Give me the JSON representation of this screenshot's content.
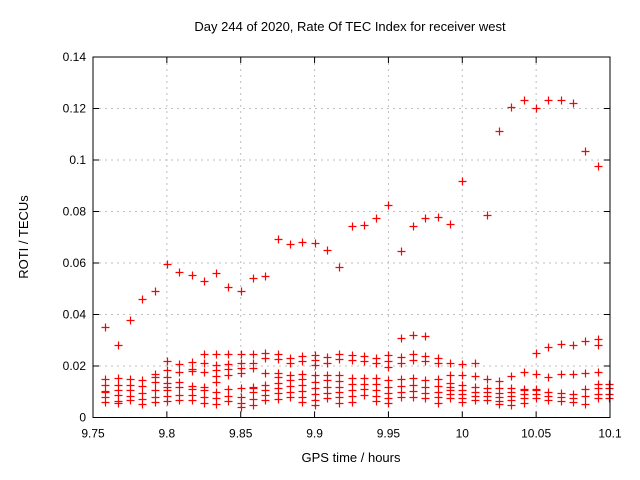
{
  "chart_data": {
    "type": "scatter",
    "title": "Day 244 of 2020, Rate Of TEC Index for receiver west",
    "xlabel": "GPS time / hours",
    "ylabel": "ROTI / TECUs",
    "xlim": [
      9.75,
      10.1
    ],
    "ylim": [
      0,
      0.14
    ],
    "xticks": [
      9.75,
      9.8,
      9.85,
      9.9,
      9.95,
      10,
      10.05,
      10.1
    ],
    "xtick_labels": [
      "9.75",
      "9.8",
      "9.85",
      "9.9",
      "9.95",
      "10",
      "10.05",
      "10.1"
    ],
    "yticks": [
      0,
      0.02,
      0.04,
      0.06,
      0.08,
      0.1,
      0.12,
      0.14
    ],
    "ytick_labels": [
      "0",
      "0.02",
      "0.04",
      "0.06",
      "0.08",
      "0.1",
      "0.12",
      "0.14"
    ],
    "grid": true,
    "legend_position": "none",
    "marker": "plus",
    "marker_color": "#ff0000",
    "grid_color": "#bfbfbf",
    "frame_color": "#000000",
    "background_color": "#ffffff",
    "series": [
      {
        "name": "ROTI",
        "epochs": [
          {
            "x": 9.7583,
            "ys": [
              0.035,
              0.015,
              0.0125,
              0.0103,
              0.0098,
              0.0078,
              0.006
            ]
          },
          {
            "x": 9.7667,
            "ys": [
              0.028,
              0.0153,
              0.0127,
              0.0108,
              0.0089,
              0.0065,
              0.0055
            ]
          },
          {
            "x": 9.775,
            "ys": [
              0.038,
              0.015,
              0.0125,
              0.0105,
              0.0085,
              0.0067
            ]
          },
          {
            "x": 9.7833,
            "ys": [
              0.046,
              0.0147,
              0.0121,
              0.0095,
              0.0073,
              0.0052
            ]
          },
          {
            "x": 9.7917,
            "ys": [
              0.049,
              0.017,
              0.0157,
              0.0139,
              0.0105,
              0.0079,
              0.006
            ]
          },
          {
            "x": 9.8,
            "ys": [
              0.0595,
              0.0218,
              0.0183,
              0.0158,
              0.0133,
              0.0118,
              0.0107,
              0.0083,
              0.0065
            ]
          },
          {
            "x": 9.8083,
            "ys": [
              0.0565,
              0.0209,
              0.0177,
              0.0139,
              0.0118,
              0.0087,
              0.0068
            ]
          },
          {
            "x": 9.8167,
            "ys": [
              0.0555,
              0.0216,
              0.0187,
              0.0179,
              0.0122,
              0.011,
              0.0087,
              0.0068
            ]
          },
          {
            "x": 9.825,
            "ys": [
              0.053,
              0.0248,
              0.0213,
              0.0177,
              0.0118,
              0.0107,
              0.0081,
              0.0057
            ]
          },
          {
            "x": 9.8333,
            "ys": [
              0.056,
              0.0245,
              0.0204,
              0.0184,
              0.016,
              0.0139,
              0.01,
              0.0074,
              0.0054
            ]
          },
          {
            "x": 9.8417,
            "ys": [
              0.0505,
              0.0245,
              0.0208,
              0.0187,
              0.0165,
              0.0111,
              0.0085,
              0.0063
            ]
          },
          {
            "x": 9.85,
            "ys": [
              0.049,
              0.0245,
              0.021,
              0.0191,
              0.0172,
              0.0115,
              0.0113,
              0.0081,
              0.0057,
              0.0042
            ]
          },
          {
            "x": 9.8583,
            "ys": [
              0.054,
              0.0245,
              0.0213,
              0.0191,
              0.0118,
              0.0116,
              0.01,
              0.0072,
              0.005
            ]
          },
          {
            "x": 9.8667,
            "ys": [
              0.0551,
              0.0249,
              0.023,
              0.0172,
              0.0126,
              0.0107,
              0.0087,
              0.0068
            ]
          },
          {
            "x": 9.875,
            "ys": [
              0.0692,
              0.0246,
              0.0226,
              0.0174,
              0.0156,
              0.0135,
              0.0113,
              0.0094,
              0.007
            ]
          },
          {
            "x": 9.8833,
            "ys": [
              0.0674,
              0.023,
              0.0211,
              0.0166,
              0.0146,
              0.0123,
              0.01,
              0.0078
            ]
          },
          {
            "x": 9.8917,
            "ys": [
              0.068,
              0.024,
              0.022,
              0.017,
              0.0148,
              0.0126,
              0.0104,
              0.008,
              0.006
            ]
          },
          {
            "x": 9.9,
            "ys": [
              0.0679,
              0.0243,
              0.0223,
              0.0204,
              0.0165,
              0.0139,
              0.0113,
              0.0091,
              0.0068,
              0.0049
            ]
          },
          {
            "x": 9.9083,
            "ys": [
              0.0649,
              0.0236,
              0.0213,
              0.0165,
              0.0146,
              0.012,
              0.0097,
              0.0075
            ]
          },
          {
            "x": 9.9167,
            "ys": [
              0.0583,
              0.0246,
              0.0226,
              0.0165,
              0.0142,
              0.012,
              0.01,
              0.0078,
              0.0058
            ]
          },
          {
            "x": 9.925,
            "ys": [
              0.0745,
              0.0243,
              0.0223,
              0.0152,
              0.013,
              0.0107,
              0.0084,
              0.0062
            ]
          },
          {
            "x": 9.9333,
            "ys": [
              0.0746,
              0.024,
              0.022,
              0.0155,
              0.0132,
              0.011,
              0.0088
            ]
          },
          {
            "x": 9.9417,
            "ys": [
              0.0773,
              0.023,
              0.021,
              0.0152,
              0.013,
              0.0107,
              0.0084,
              0.0066
            ]
          },
          {
            "x": 9.95,
            "ys": [
              0.0824,
              0.0243,
              0.0221,
              0.0198,
              0.0146,
              0.012,
              0.0097,
              0.0075,
              0.0055
            ]
          },
          {
            "x": 9.9583,
            "ys": [
              0.0647,
              0.031,
              0.0236,
              0.0213,
              0.0148,
              0.0123,
              0.01,
              0.0078
            ]
          },
          {
            "x": 9.9667,
            "ys": [
              0.0744,
              0.032,
              0.0246,
              0.0223,
              0.0152,
              0.0126,
              0.0104,
              0.0081
            ]
          },
          {
            "x": 9.975,
            "ys": [
              0.0776,
              0.0315,
              0.024,
              0.022,
              0.0146,
              0.012,
              0.0097,
              0.0075
            ]
          },
          {
            "x": 9.9833,
            "ys": [
              0.0777,
              0.0233,
              0.0211,
              0.0148,
              0.0123,
              0.01,
              0.0078,
              0.0058
            ]
          },
          {
            "x": 9.9917,
            "ys": [
              0.0751,
              0.021,
              0.0165,
              0.0135,
              0.012,
              0.0105,
              0.009,
              0.0075
            ]
          },
          {
            "x": 10.0,
            "ys": [
              0.0918,
              0.0206,
              0.0165,
              0.0125,
              0.0105,
              0.009,
              0.0075,
              0.006
            ]
          },
          {
            "x": 10.0083,
            "ys": [
              0.021,
              0.0162,
              0.0118,
              0.01,
              0.0084,
              0.0067
            ]
          },
          {
            "x": 10.0167,
            "ys": [
              0.0785,
              0.0148,
              0.0116,
              0.01,
              0.0083,
              0.0067
            ]
          },
          {
            "x": 10.025,
            "ys": [
              0.1111,
              0.0143,
              0.0113,
              0.0096,
              0.0081,
              0.0065,
              0.0052
            ]
          },
          {
            "x": 10.0333,
            "ys": [
              0.1204,
              0.0161,
              0.0116,
              0.01,
              0.0083,
              0.0067,
              0.0047
            ]
          },
          {
            "x": 10.0417,
            "ys": [
              0.1233,
              0.0176,
              0.011,
              0.0107,
              0.0092,
              0.0075,
              0.0058
            ]
          },
          {
            "x": 10.05,
            "ys": [
              0.1202,
              0.0252,
              0.0168,
              0.011,
              0.0107,
              0.0092,
              0.0075
            ]
          },
          {
            "x": 10.0583,
            "ys": [
              0.1234,
              0.0273,
              0.0158,
              0.01,
              0.0083,
              0.0067
            ]
          },
          {
            "x": 10.0667,
            "ys": [
              0.1232,
              0.0285,
              0.0168,
              0.0096,
              0.0081,
              0.0065
            ]
          },
          {
            "x": 10.075,
            "ys": [
              0.122,
              0.0282,
              0.0168,
              0.0093,
              0.0077,
              0.006
            ]
          },
          {
            "x": 10.0833,
            "ys": [
              0.1034,
              0.0297,
              0.0173,
              0.011,
              0.0083,
              0.0052
            ]
          },
          {
            "x": 10.0917,
            "ys": [
              0.0977,
              0.0304,
              0.0282,
              0.0176,
              0.0129,
              0.0113,
              0.009,
              0.0075
            ]
          },
          {
            "x": 10.0995,
            "ys": [
              0.013,
              0.0113,
              0.009,
              0.0075
            ]
          }
        ]
      }
    ]
  }
}
